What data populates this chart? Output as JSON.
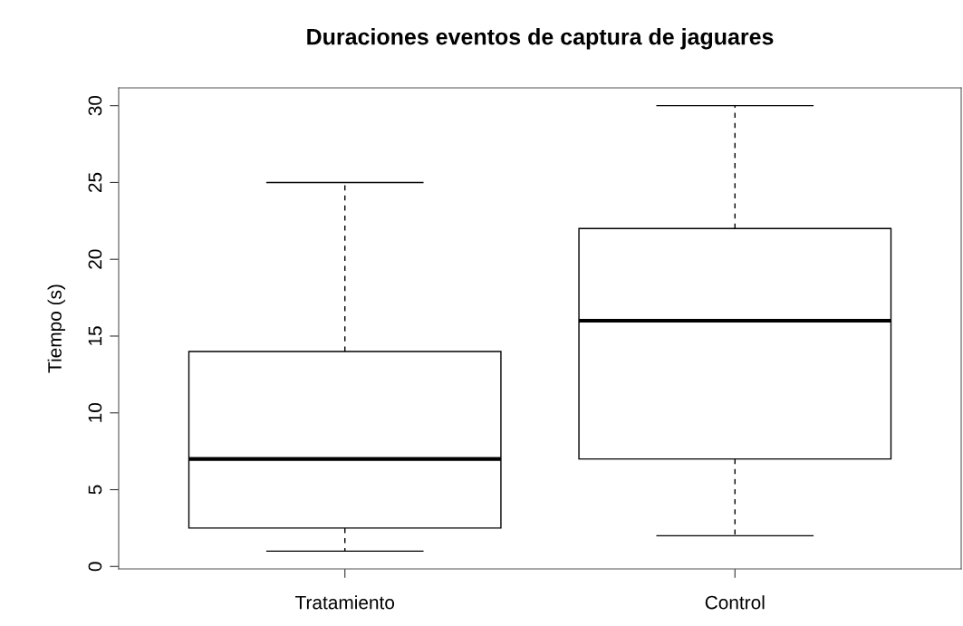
{
  "chart_data": {
    "type": "box",
    "title": "Duraciones eventos de captura de jaguares",
    "ylabel": "Tiempo (s)",
    "categories": [
      "Tratamiento",
      "Control"
    ],
    "boxes": [
      {
        "low": 1,
        "q1": 2.5,
        "median": 7,
        "q3": 14,
        "high": 25
      },
      {
        "low": 2,
        "q1": 7,
        "median": 16,
        "q3": 22,
        "high": 30
      }
    ],
    "color": "#ffffff",
    "ylim": [
      -0.16,
      31.16
    ],
    "yticks": [
      0,
      5,
      10,
      15,
      20,
      25,
      30
    ],
    "grid": false
  }
}
